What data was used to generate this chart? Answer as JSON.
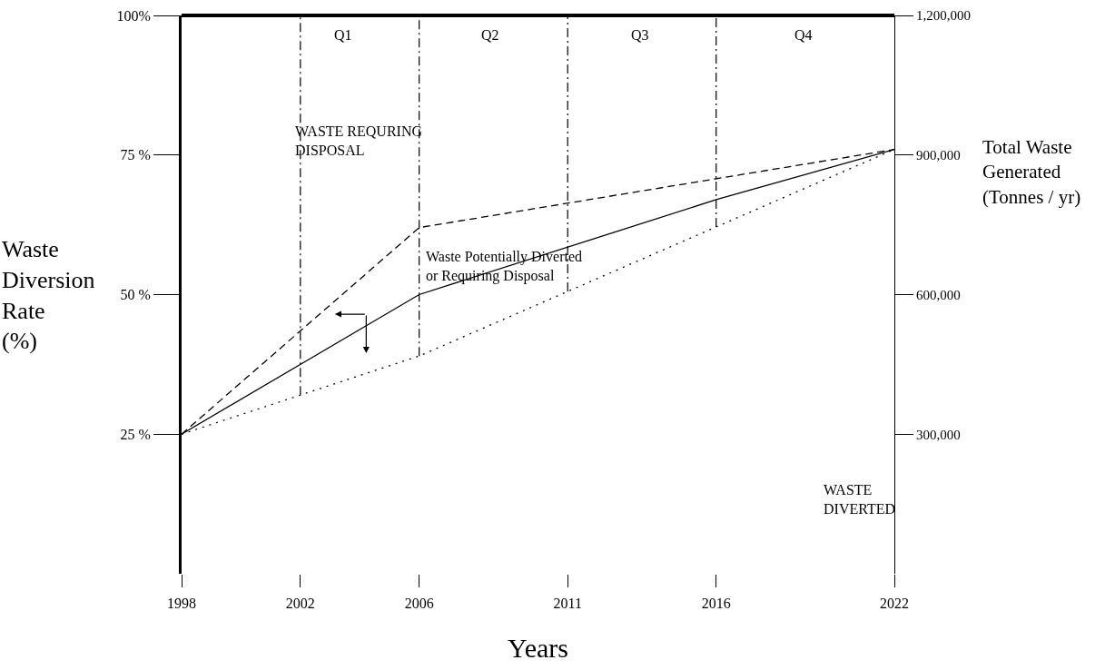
{
  "chart_data": {
    "type": "line",
    "xlabel": "Years",
    "ylabel": "Waste\nDiversion\nRate\n(%)",
    "y2label": "Total Waste\nGenerated\n(Tonnes / yr)",
    "xlim": [
      1998,
      2022
    ],
    "xticks": [
      1998,
      2002,
      2006,
      2011,
      2016,
      2022
    ],
    "ylim": [
      0,
      100
    ],
    "yticks": [
      {
        "value": 25,
        "label": "25 %"
      },
      {
        "value": 50,
        "label": "50 %"
      },
      {
        "value": 75,
        "label": "75 %"
      },
      {
        "value": 100,
        "label": "100%"
      }
    ],
    "y2lim": [
      0,
      1200000
    ],
    "y2ticks": [
      {
        "value": 300000,
        "label": "300,000"
      },
      {
        "value": 600000,
        "label": "600,000"
      },
      {
        "value": 900000,
        "label": "900,000"
      },
      {
        "value": 1200000,
        "label": "1,200,000"
      }
    ],
    "series": [
      {
        "color": "#000000",
        "line_style": "dashed",
        "x": [
          1998,
          2006,
          2022
        ],
        "values": [
          25,
          62,
          76
        ]
      },
      {
        "color": "#000000",
        "line_style": "solid",
        "x": [
          1998,
          2006,
          2016,
          2022
        ],
        "values": [
          25,
          50,
          67,
          76
        ]
      },
      {
        "color": "#000000",
        "line_style": "dotted",
        "x": [
          1998,
          2006,
          2022
        ],
        "values": [
          25,
          39,
          76
        ]
      }
    ],
    "ref_lines": [
      {
        "axis": "x",
        "value": 2002,
        "line_style": "dashdot"
      },
      {
        "axis": "x",
        "value": 2006,
        "line_style": "dashdot"
      },
      {
        "axis": "x",
        "value": 2011,
        "line_style": "dashdot"
      },
      {
        "axis": "x",
        "value": 2016,
        "line_style": "dashdot"
      }
    ],
    "annotations": [
      "Q1",
      "Q2",
      "Q3",
      "Q4",
      "WASTE REQURING\nDISPOSAL",
      "Waste Potentially Diverted\nor Requiring Disposal",
      "WASTE\nDIVERTED"
    ],
    "grid": false,
    "marker": "none"
  }
}
